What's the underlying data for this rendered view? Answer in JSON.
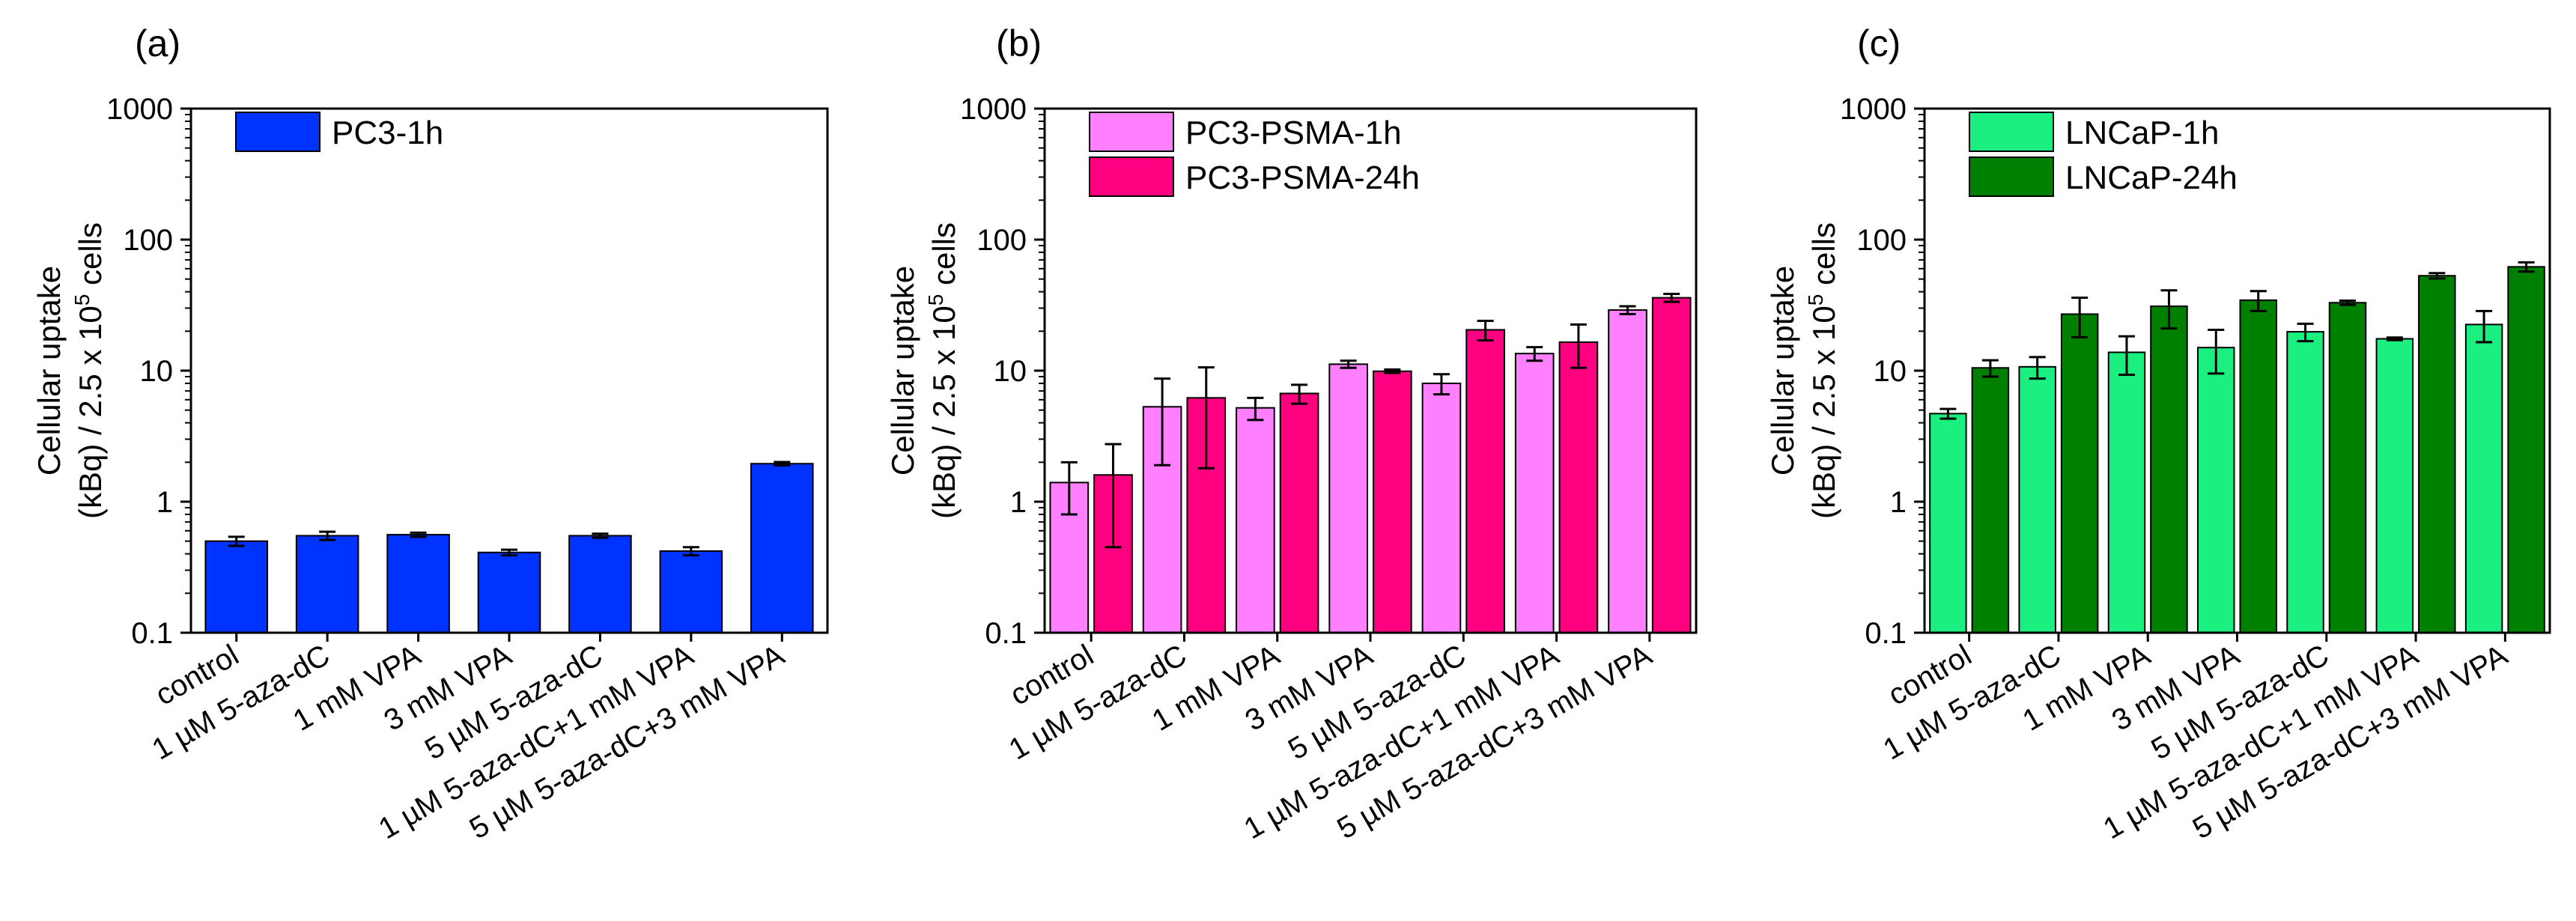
{
  "chart_data": [
    {
      "panel_label": "(a)",
      "type": "bar",
      "yscale": "log",
      "ylim": [
        0.1,
        1000
      ],
      "yticks": [
        "0.1",
        "1",
        "10",
        "100",
        "1000"
      ],
      "ylabel_line1": "Cellular uptake",
      "ylabel_line2_pre": "(kBq) / 2.5 x 10",
      "ylabel_line2_sup": "5",
      "ylabel_line2_post": " cells",
      "legend_position": "top-left",
      "categories": [
        "control",
        "1 µM 5-aza-dC",
        "1 mM VPA",
        "3 mM VPA",
        "5 µM 5-aza-dC",
        "1 µM 5-aza-dC+1 mM VPA",
        "5 µM 5-aza-dC+3 mM VPA"
      ],
      "series": [
        {
          "name": "PC3-1h",
          "color": "#0033ff",
          "values": [
            0.5,
            0.55,
            0.56,
            0.41,
            0.55,
            0.42,
            1.95
          ],
          "errors": [
            0.04,
            0.04,
            0.02,
            0.02,
            0.02,
            0.03,
            0.06
          ]
        }
      ]
    },
    {
      "panel_label": "(b)",
      "type": "bar",
      "yscale": "log",
      "ylim": [
        0.1,
        1000
      ],
      "yticks": [
        "0.1",
        "1",
        "10",
        "100",
        "1000"
      ],
      "ylabel_line1": "Cellular uptake",
      "ylabel_line2_pre": "(kBq) / 2.5 x 10",
      "ylabel_line2_sup": "5",
      "ylabel_line2_post": " cells",
      "legend_position": "top-left",
      "categories": [
        "control",
        "1 µM 5-aza-dC",
        "1 mM VPA",
        "3 mM VPA",
        "5 µM 5-aza-dC",
        "1 µM 5-aza-dC+1 mM VPA",
        "5 µM 5-aza-dC+3 mM VPA"
      ],
      "series": [
        {
          "name": "PC3-PSMA-1h",
          "color": "#ff80ff",
          "values": [
            1.4,
            5.3,
            5.2,
            11.2,
            8.0,
            13.5,
            29.0
          ],
          "errors": [
            0.6,
            3.4,
            1.0,
            0.7,
            1.4,
            1.6,
            2.0
          ]
        },
        {
          "name": "PC3-PSMA-24h",
          "color": "#ff0080",
          "values": [
            1.6,
            6.2,
            6.7,
            9.9,
            20.5,
            16.5,
            36.0
          ],
          "errors": [
            1.15,
            4.4,
            1.1,
            0.3,
            3.5,
            6.0,
            2.5
          ]
        }
      ]
    },
    {
      "panel_label": "(c)",
      "type": "bar",
      "yscale": "log",
      "ylim": [
        0.1,
        1000
      ],
      "yticks": [
        "0.1",
        "1",
        "10",
        "100",
        "1000"
      ],
      "ylabel_line1": "Cellular uptake",
      "ylabel_line2_pre": "(kBq) / 2.5 x 10",
      "ylabel_line2_sup": "5",
      "ylabel_line2_post": " cells",
      "legend_position": "top-left",
      "categories": [
        "control",
        "1 µM 5-aza-dC",
        "1 mM VPA",
        "3 mM VPA",
        "5 µM 5-aza-dC",
        "1 µM 5-aza-dC+1 mM VPA",
        "5 µM 5-aza-dC+3 mM VPA"
      ],
      "series": [
        {
          "name": "LNCaP-1h",
          "color": "#1aef80",
          "values": [
            4.7,
            10.7,
            13.8,
            15.0,
            19.8,
            17.5,
            22.5
          ],
          "errors": [
            0.4,
            2.0,
            4.5,
            5.5,
            3.0,
            0.4,
            6.0
          ]
        },
        {
          "name": "LNCaP-24h",
          "color": "#008000",
          "values": [
            10.5,
            27.0,
            31.0,
            34.5,
            33.0,
            53.0,
            62.0
          ],
          "errors": [
            1.5,
            9.0,
            10.0,
            6.0,
            1.2,
            2.5,
            5.0
          ]
        }
      ]
    }
  ]
}
